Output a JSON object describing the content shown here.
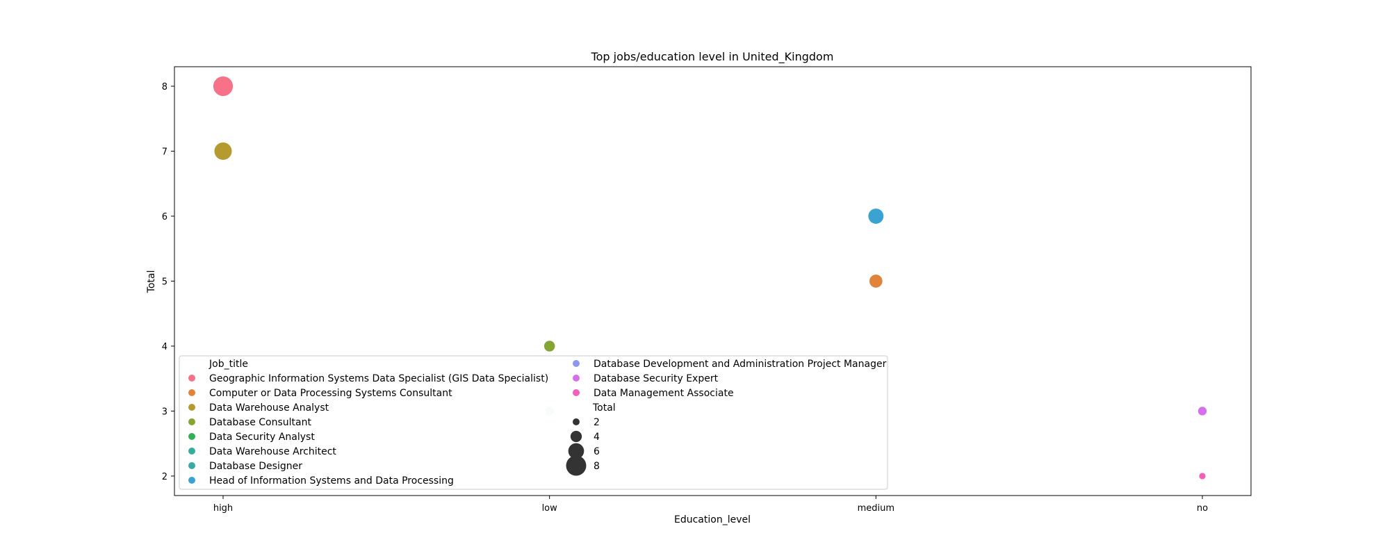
{
  "chart_data": {
    "type": "scatter",
    "title": "Top jobs/education level in United_Kingdom",
    "xlabel": "Education_level",
    "ylabel": "Total",
    "categories": [
      "high",
      "low",
      "medium",
      "no"
    ],
    "ylim": [
      1.7,
      8.3
    ],
    "yticks": [
      2,
      3,
      4,
      5,
      6,
      7,
      8
    ],
    "grid": false,
    "legend": {
      "placement": "lower-left",
      "hue_title": "Job_title",
      "size_title": "Total",
      "size_entries": [
        2,
        4,
        6,
        8
      ]
    },
    "series": [
      {
        "name": "Geographic Information Systems Data Specialist (GIS Data Specialist)",
        "color": "#f77189",
        "points": [
          {
            "x": "high",
            "y": 8
          }
        ]
      },
      {
        "name": "Computer or Data Processing Systems Consultant",
        "color": "#e0843b",
        "points": [
          {
            "x": "medium",
            "y": 5
          }
        ]
      },
      {
        "name": "Data Warehouse Analyst",
        "color": "#b59a2f",
        "points": [
          {
            "x": "high",
            "y": 7
          }
        ]
      },
      {
        "name": "Database Consultant",
        "color": "#84a531",
        "points": [
          {
            "x": "low",
            "y": 4
          }
        ]
      },
      {
        "name": "Data Security Analyst",
        "color": "#34b057",
        "points": []
      },
      {
        "name": "Data Warehouse Architect",
        "color": "#36ad9a",
        "points": [
          {
            "x": "low",
            "y": 3
          }
        ]
      },
      {
        "name": "Database Designer",
        "color": "#38a9a6",
        "points": []
      },
      {
        "name": "Head of Information Systems and Data Processing",
        "color": "#3ba3d1",
        "points": [
          {
            "x": "medium",
            "y": 6
          }
        ]
      },
      {
        "name": "Database Development and Administration Project Manager",
        "color": "#8e97ef",
        "points": []
      },
      {
        "name": "Database Security Expert",
        "color": "#d670ea",
        "points": [
          {
            "x": "no",
            "y": 3
          }
        ]
      },
      {
        "name": "Data Management Associate",
        "color": "#f15fbb",
        "points": [
          {
            "x": "no",
            "y": 2
          }
        ]
      }
    ]
  }
}
